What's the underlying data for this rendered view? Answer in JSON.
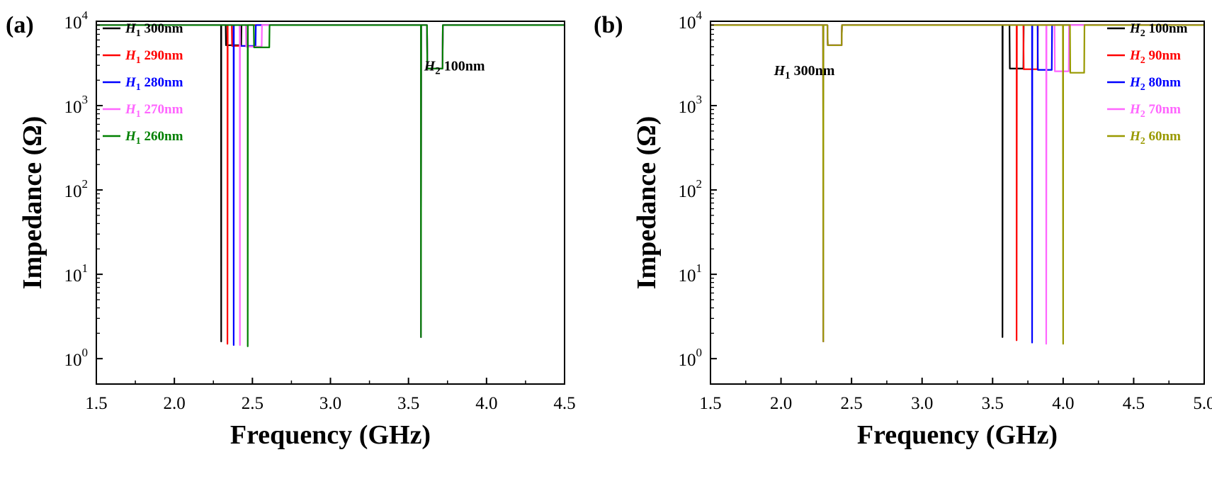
{
  "chart_data": [
    {
      "panel_label": "(a)",
      "type": "line",
      "xlabel": "Frequency (GHz)",
      "ylabel": "Impedance (Ω)",
      "xlim": [
        1.5,
        4.5
      ],
      "ylim": [
        0.5,
        10000
      ],
      "yscale": "log",
      "xticks": [
        "1.5",
        "2.0",
        "2.5",
        "3.0",
        "3.5",
        "4.0",
        "4.5"
      ],
      "yticks": [
        {
          "value": 1,
          "base": "10",
          "exp": "0"
        },
        {
          "value": 10,
          "base": "10",
          "exp": "1"
        },
        {
          "value": 100,
          "base": "10",
          "exp": "2"
        },
        {
          "value": 1000,
          "base": "10",
          "exp": "3"
        },
        {
          "value": 10000,
          "base": "10",
          "exp": "4"
        }
      ],
      "legend_position": "top-left",
      "annotation": {
        "var": "H",
        "sub": "2",
        "text": " 100nm",
        "x": 3.6,
        "y": 2600
      },
      "series": [
        {
          "var": "H",
          "sub": "1",
          "text": " 300nm",
          "color": "#000000",
          "fr": 2.3,
          "fa": 2.38,
          "fr2": 3.58,
          "fa2": 3.67,
          "zr": 1.6,
          "za": 5200,
          "zr2": 1.8,
          "za2": 2750
        },
        {
          "var": "H",
          "sub": "1",
          "text": " 290nm",
          "color": "#ff0000",
          "fr": 2.34,
          "fa": 2.42,
          "fr2": 3.58,
          "fa2": 3.67,
          "zr": 1.5,
          "za": 5100,
          "zr2": 1.8,
          "za2": 2750
        },
        {
          "var": "H",
          "sub": "1",
          "text": " 280nm",
          "color": "#0000ff",
          "fr": 2.38,
          "fa": 2.47,
          "fr2": 3.58,
          "fa2": 3.67,
          "zr": 1.45,
          "za": 5100,
          "zr2": 1.8,
          "za2": 2750
        },
        {
          "var": "H",
          "sub": "1",
          "text": " 270nm",
          "color": "#ff66ff",
          "fr": 2.42,
          "fa": 2.51,
          "fr2": 3.58,
          "fa2": 3.67,
          "zr": 1.45,
          "za": 5000,
          "zr2": 1.8,
          "za2": 2750
        },
        {
          "var": "H",
          "sub": "1",
          "text": " 260nm",
          "color": "#008000",
          "fr": 2.47,
          "fa": 2.56,
          "fr2": 3.58,
          "fa2": 3.67,
          "zr": 1.4,
          "za": 4900,
          "zr2": 1.8,
          "za2": 2750
        }
      ]
    },
    {
      "panel_label": "(b)",
      "type": "line",
      "xlabel": "Frequency (GHz)",
      "ylabel": "Impedance (Ω)",
      "xlim": [
        1.5,
        5.0
      ],
      "ylim": [
        0.5,
        10000
      ],
      "yscale": "log",
      "xticks": [
        "1.5",
        "2.0",
        "2.5",
        "3.0",
        "3.5",
        "4.0",
        "4.5",
        "5.0"
      ],
      "yticks": [
        {
          "value": 1,
          "base": "10",
          "exp": "0"
        },
        {
          "value": 10,
          "base": "10",
          "exp": "1"
        },
        {
          "value": 100,
          "base": "10",
          "exp": "2"
        },
        {
          "value": 1000,
          "base": "10",
          "exp": "3"
        },
        {
          "value": 10000,
          "base": "10",
          "exp": "4"
        }
      ],
      "legend_position": "top-right",
      "annotation": {
        "var": "H",
        "sub": "1",
        "text": " 300nm",
        "x": 1.95,
        "y": 2300
      },
      "series": [
        {
          "var": "H",
          "sub": "2",
          "text": " 100nm",
          "color": "#000000",
          "fr": 2.3,
          "fa": 2.38,
          "fr2": 3.57,
          "fa2": 3.67,
          "zr": 1.6,
          "za": 5200,
          "zr2": 1.8,
          "za2": 2750
        },
        {
          "var": "H",
          "sub": "2",
          "text": " 90nm",
          "color": "#ff0000",
          "fr": 2.3,
          "fa": 2.38,
          "fr2": 3.67,
          "fa2": 3.77,
          "zr": 1.6,
          "za": 5200,
          "zr2": 1.65,
          "za2": 2700
        },
        {
          "var": "H",
          "sub": "2",
          "text": " 80nm",
          "color": "#0000ff",
          "fr": 2.3,
          "fa": 2.38,
          "fr2": 3.78,
          "fa2": 3.87,
          "zr": 1.6,
          "za": 5200,
          "zr2": 1.55,
          "za2": 2650
        },
        {
          "var": "H",
          "sub": "2",
          "text": " 70nm",
          "color": "#ff66ff",
          "fr": 2.3,
          "fa": 2.38,
          "fr2": 3.88,
          "fa2": 3.99,
          "zr": 1.6,
          "za": 5200,
          "zr2": 1.5,
          "za2": 2550
        },
        {
          "var": "H",
          "sub": "2",
          "text": " 60nm",
          "color": "#999900",
          "fr": 2.3,
          "fa": 2.38,
          "fr2": 4.0,
          "fa2": 4.1,
          "zr": 1.6,
          "za": 5200,
          "zr2": 1.5,
          "za2": 2450
        }
      ]
    }
  ]
}
